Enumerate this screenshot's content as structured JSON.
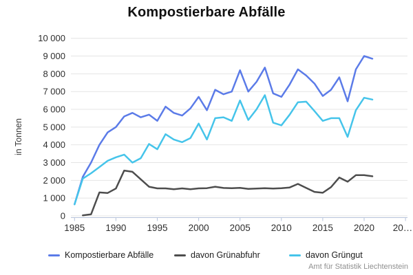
{
  "title": "Kompostierbare Abfälle",
  "attribution": "Amt für Statistik Liechtenstein",
  "y_axis": {
    "label": "in Tonnen",
    "ticks": [
      {
        "label": "10 000",
        "value": 10000
      },
      {
        "label": "9 000",
        "value": 9000
      },
      {
        "label": "8 000",
        "value": 8000
      },
      {
        "label": "7 000",
        "value": 7000
      },
      {
        "label": "6 000",
        "value": 6000
      },
      {
        "label": "5 000",
        "value": 5000
      },
      {
        "label": "4 000",
        "value": 4000
      },
      {
        "label": "3 000",
        "value": 3000
      },
      {
        "label": "2 000",
        "value": 2000
      },
      {
        "label": "1 000",
        "value": 1000
      },
      {
        "label": "0",
        "value": 0
      }
    ]
  },
  "x_axis": {
    "ticks": [
      {
        "label": "1985",
        "year": 1985
      },
      {
        "label": "1990",
        "year": 1990
      },
      {
        "label": "1995",
        "year": 1995
      },
      {
        "label": "2000",
        "year": 2000
      },
      {
        "label": "2005",
        "year": 2005
      },
      {
        "label": "2010",
        "year": 2010
      },
      {
        "label": "2015",
        "year": 2015
      },
      {
        "label": "2020",
        "year": 2020
      },
      {
        "label": "20…",
        "year": 2025
      }
    ]
  },
  "colors": {
    "grid": "#e4e4e4",
    "axis": "#b6c3da",
    "tick_text": "#2e2e2e",
    "title_text": "#111111",
    "attribution_text": "#8f8f8f"
  },
  "chart_data": {
    "type": "line",
    "title": "Kompostierbare Abfälle",
    "ylabel": "in Tonnen",
    "xlabel": "",
    "ylim": [
      0,
      10000
    ],
    "xlim": [
      1985,
      2025
    ],
    "grid": "horizontal",
    "legend_position": "bottom",
    "x": [
      1985,
      1986,
      1987,
      1988,
      1989,
      1990,
      1991,
      1992,
      1993,
      1994,
      1995,
      1996,
      1997,
      1998,
      1999,
      2000,
      2001,
      2002,
      2003,
      2004,
      2005,
      2006,
      2007,
      2008,
      2009,
      2010,
      2011,
      2012,
      2013,
      2014,
      2015,
      2016,
      2017,
      2018,
      2019,
      2020,
      2021
    ],
    "series": [
      {
        "id": "total",
        "name": "Kompostierbare Abfälle",
        "color": "#5b7be8",
        "values": [
          650,
          2200,
          3000,
          4000,
          4700,
          5000,
          5600,
          5800,
          5550,
          5700,
          5350,
          6150,
          5800,
          5650,
          6050,
          6700,
          5950,
          7100,
          6850,
          7000,
          8200,
          7000,
          7550,
          8350,
          6900,
          6700,
          7400,
          8250,
          7900,
          7450,
          6750,
          7100,
          7800,
          6450,
          8250,
          9000,
          8850
        ]
      },
      {
        "id": "gruenabfuhr",
        "name": "davon Grünabfuhr",
        "color": "#4d4d4d",
        "values": [
          null,
          30,
          90,
          1320,
          1290,
          1540,
          2550,
          2480,
          2060,
          1640,
          1550,
          1550,
          1500,
          1550,
          1500,
          1550,
          1560,
          1640,
          1570,
          1560,
          1580,
          1520,
          1540,
          1560,
          1540,
          1560,
          1600,
          1800,
          1570,
          1350,
          1300,
          1620,
          2160,
          1925,
          2290,
          2290,
          2230
        ]
      },
      {
        "id": "gruengut",
        "name": "davon Grüngut",
        "color": "#45c4ea",
        "values": [
          650,
          2100,
          2400,
          2750,
          3100,
          3300,
          3450,
          3000,
          3250,
          4050,
          3750,
          4600,
          4300,
          4150,
          4380,
          5200,
          4300,
          5500,
          5550,
          5350,
          6500,
          5400,
          6000,
          6800,
          5250,
          5100,
          5700,
          6400,
          6430,
          5900,
          5350,
          5500,
          5500,
          4450,
          5950,
          6650,
          6550
        ]
      }
    ]
  }
}
